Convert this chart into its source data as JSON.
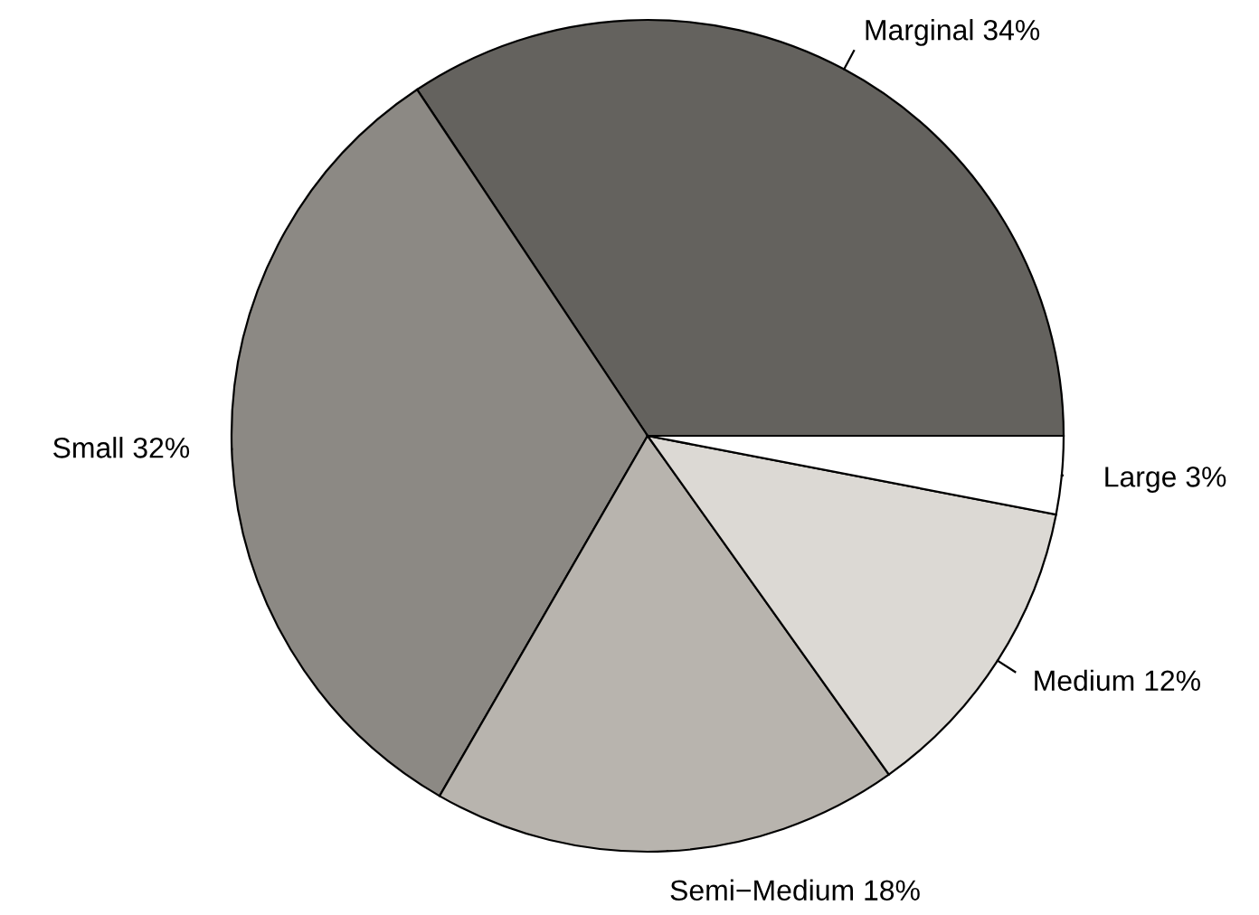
{
  "chart_data": {
    "type": "pie",
    "categories": [
      "Marginal 34%",
      "Small 32%",
      "Semi−Medium 18%",
      "Medium 12%",
      "Large 3%"
    ],
    "values": [
      34,
      32,
      18,
      12,
      3
    ],
    "colors": [
      "#64625e",
      "#8c8984",
      "#b8b4ae",
      "#dcd9d4",
      "#ffffff"
    ]
  }
}
